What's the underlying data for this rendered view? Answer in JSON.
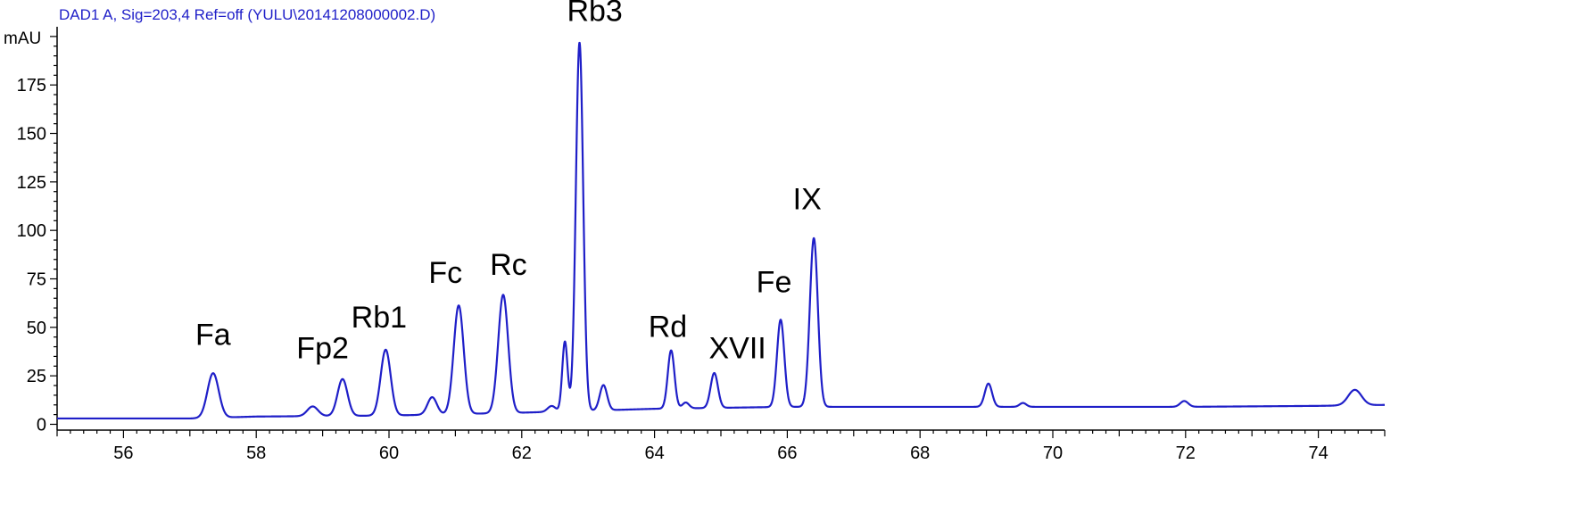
{
  "chart_data": {
    "type": "line",
    "header": "DAD1 A, Sig=203,4 Ref=off (YULU\\20141208000002.D)",
    "ylabel": "mAU",
    "xlim": [
      55,
      75
    ],
    "ylim": [
      -3,
      205
    ],
    "x_ticks": [
      "56",
      "58",
      "60",
      "62",
      "64",
      "66",
      "68",
      "70",
      "72",
      "74"
    ],
    "y_ticks": [
      "0",
      "25",
      "50",
      "75",
      "100",
      "125",
      "150",
      "175"
    ],
    "line_color": "#1f1fc8",
    "baseline": 3,
    "baseline_points": [
      [
        55.0,
        3.0
      ],
      [
        57.0,
        3.0
      ],
      [
        58.0,
        4.0
      ],
      [
        60.0,
        4.5
      ],
      [
        62.0,
        6.0
      ],
      [
        64.0,
        8.0
      ],
      [
        66.0,
        9.0
      ],
      [
        68.0,
        9.0
      ],
      [
        70.0,
        9.0
      ],
      [
        72.0,
        9.0
      ],
      [
        74.0,
        9.5
      ],
      [
        75.0,
        10.0
      ]
    ],
    "peaks": [
      {
        "x": 57.35,
        "height": 23,
        "width": 0.085
      },
      {
        "x": 58.85,
        "height": 5,
        "width": 0.08
      },
      {
        "x": 59.3,
        "height": 19,
        "width": 0.075
      },
      {
        "x": 59.95,
        "height": 34,
        "width": 0.075
      },
      {
        "x": 60.65,
        "height": 9,
        "width": 0.07
      },
      {
        "x": 61.05,
        "height": 56,
        "width": 0.075
      },
      {
        "x": 61.72,
        "height": 61,
        "width": 0.075
      },
      {
        "x": 62.45,
        "height": 3,
        "width": 0.06
      },
      {
        "x": 62.65,
        "height": 36,
        "width": 0.04
      },
      {
        "x": 62.87,
        "height": 190,
        "width": 0.055
      },
      {
        "x": 63.23,
        "height": 13,
        "width": 0.055
      },
      {
        "x": 64.25,
        "height": 30,
        "width": 0.05
      },
      {
        "x": 64.47,
        "height": 3,
        "width": 0.05
      },
      {
        "x": 64.9,
        "height": 18,
        "width": 0.055
      },
      {
        "x": 65.9,
        "height": 45,
        "width": 0.055
      },
      {
        "x": 66.4,
        "height": 87,
        "width": 0.06
      },
      {
        "x": 69.03,
        "height": 12,
        "width": 0.055
      },
      {
        "x": 69.55,
        "height": 2,
        "width": 0.05
      },
      {
        "x": 71.98,
        "height": 3,
        "width": 0.06
      },
      {
        "x": 74.55,
        "height": 8,
        "width": 0.1
      }
    ],
    "annotations": [
      {
        "text": "Fa",
        "x": 57.35,
        "y": 41
      },
      {
        "text": "Fp2",
        "x": 59.0,
        "y": 34
      },
      {
        "text": "Rb1",
        "x": 59.85,
        "y": 50
      },
      {
        "text": "Fc",
        "x": 60.85,
        "y": 73
      },
      {
        "text": "Rc",
        "x": 61.8,
        "y": 77
      },
      {
        "text": "Rb3",
        "x": 63.1,
        "y": 208
      },
      {
        "text": "Rd",
        "x": 64.2,
        "y": 45
      },
      {
        "text": "XVII",
        "x": 65.25,
        "y": 34
      },
      {
        "text": "Fe",
        "x": 65.8,
        "y": 68
      },
      {
        "text": "IX",
        "x": 66.3,
        "y": 111
      }
    ]
  }
}
